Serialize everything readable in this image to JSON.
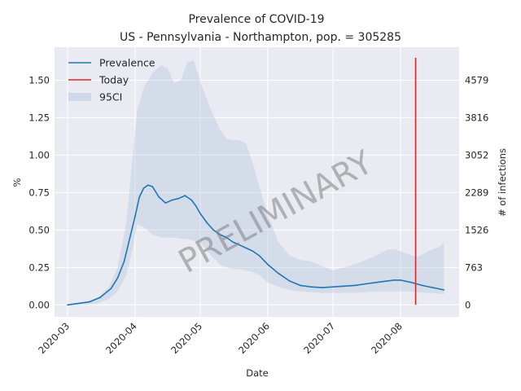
{
  "chart_data": {
    "type": "line",
    "title_line1": "Prevalence of COVID-19",
    "title_line2": "US - Pennsylvania - Northampton, pop. = 305285",
    "xlabel": "Date",
    "ylabel": "%",
    "y2label": "# of infections",
    "watermark": "PRELIMINARY",
    "grid": true,
    "legend_placement": "top-left",
    "xlim": [
      "2020-02-24",
      "2020-08-28"
    ],
    "ylim": [
      -0.08,
      1.72
    ],
    "x_ticks": [
      "2020-03-01",
      "2020-04-01",
      "2020-05-01",
      "2020-06-01",
      "2020-07-01",
      "2020-08-01"
    ],
    "x_tick_labels": [
      "2020-03",
      "2020-04",
      "2020-05",
      "2020-06",
      "2020-07",
      "2020-08"
    ],
    "y_ticks": [
      0.0,
      0.25,
      0.5,
      0.75,
      1.0,
      1.25,
      1.5
    ],
    "y_tick_labels": [
      "0.00",
      "0.25",
      "0.50",
      "0.75",
      "1.00",
      "1.25",
      "1.50"
    ],
    "y2_ticks": [
      0,
      763,
      1526,
      2289,
      3052,
      3816,
      4579
    ],
    "y2_tick_labels": [
      "0",
      "763",
      "1526",
      "2289",
      "3052",
      "3816",
      "4579"
    ],
    "population": 305285,
    "colors": {
      "prevalence": "#1f77b4",
      "today": "#d62728",
      "ci": "#b0c4de",
      "background": "#eaeaf2",
      "grid": "#ffffff"
    },
    "series": [
      {
        "name": "Prevalence",
        "x": [
          "2020-03-01",
          "2020-03-06",
          "2020-03-11",
          "2020-03-16",
          "2020-03-21",
          "2020-03-24",
          "2020-03-27",
          "2020-03-30",
          "2020-04-01",
          "2020-04-03",
          "2020-04-05",
          "2020-04-07",
          "2020-04-09",
          "2020-04-12",
          "2020-04-15",
          "2020-04-18",
          "2020-04-21",
          "2020-04-24",
          "2020-04-27",
          "2020-04-29",
          "2020-05-01",
          "2020-05-04",
          "2020-05-07",
          "2020-05-10",
          "2020-05-13",
          "2020-05-16",
          "2020-05-19",
          "2020-05-22",
          "2020-05-25",
          "2020-05-28",
          "2020-06-01",
          "2020-06-06",
          "2020-06-11",
          "2020-06-16",
          "2020-06-21",
          "2020-06-26",
          "2020-07-01",
          "2020-07-06",
          "2020-07-11",
          "2020-07-16",
          "2020-07-21",
          "2020-07-26",
          "2020-07-29",
          "2020-08-01",
          "2020-08-06",
          "2020-08-11",
          "2020-08-16",
          "2020-08-21"
        ],
        "values": [
          0.0,
          0.01,
          0.02,
          0.05,
          0.11,
          0.18,
          0.29,
          0.47,
          0.59,
          0.72,
          0.78,
          0.8,
          0.79,
          0.72,
          0.68,
          0.7,
          0.71,
          0.73,
          0.7,
          0.66,
          0.61,
          0.55,
          0.5,
          0.47,
          0.45,
          0.42,
          0.4,
          0.38,
          0.36,
          0.33,
          0.27,
          0.21,
          0.16,
          0.13,
          0.12,
          0.115,
          0.12,
          0.125,
          0.13,
          0.14,
          0.15,
          0.16,
          0.165,
          0.165,
          0.15,
          0.13,
          0.115,
          0.1
        ]
      },
      {
        "name": "95CI",
        "x": [
          "2020-03-01",
          "2020-03-08",
          "2020-03-15",
          "2020-03-20",
          "2020-03-24",
          "2020-03-28",
          "2020-03-31",
          "2020-04-02",
          "2020-04-05",
          "2020-04-09",
          "2020-04-13",
          "2020-04-16",
          "2020-04-19",
          "2020-04-22",
          "2020-04-25",
          "2020-04-28",
          "2020-05-02",
          "2020-05-06",
          "2020-05-10",
          "2020-05-13",
          "2020-05-16",
          "2020-05-19",
          "2020-05-22",
          "2020-05-25",
          "2020-05-28",
          "2020-06-01",
          "2020-06-06",
          "2020-06-11",
          "2020-06-16",
          "2020-06-21",
          "2020-06-26",
          "2020-07-01",
          "2020-07-06",
          "2020-07-11",
          "2020-07-16",
          "2020-07-21",
          "2020-07-26",
          "2020-07-30",
          "2020-08-04",
          "2020-08-09",
          "2020-08-14",
          "2020-08-19",
          "2020-08-21"
        ],
        "upper": [
          0.0,
          0.01,
          0.05,
          0.12,
          0.25,
          0.55,
          1.0,
          1.3,
          1.45,
          1.55,
          1.6,
          1.58,
          1.48,
          1.5,
          1.62,
          1.63,
          1.45,
          1.3,
          1.17,
          1.11,
          1.1,
          1.1,
          1.08,
          0.95,
          0.8,
          0.6,
          0.42,
          0.33,
          0.3,
          0.29,
          0.26,
          0.23,
          0.25,
          0.27,
          0.3,
          0.33,
          0.37,
          0.37,
          0.34,
          0.32,
          0.36,
          0.39,
          0.42
        ],
        "lower": [
          0.0,
          0.0,
          0.01,
          0.04,
          0.09,
          0.2,
          0.38,
          0.54,
          0.52,
          0.47,
          0.45,
          0.45,
          0.45,
          0.44,
          0.44,
          0.43,
          0.4,
          0.33,
          0.27,
          0.25,
          0.24,
          0.24,
          0.23,
          0.22,
          0.2,
          0.15,
          0.12,
          0.1,
          0.09,
          0.085,
          0.08,
          0.08,
          0.08,
          0.08,
          0.085,
          0.09,
          0.09,
          0.09,
          0.09,
          0.085,
          0.08,
          0.075,
          0.07
        ]
      }
    ],
    "today": {
      "name": "Today",
      "x": "2020-08-08",
      "y_range": [
        0.0,
        1.65
      ]
    }
  }
}
